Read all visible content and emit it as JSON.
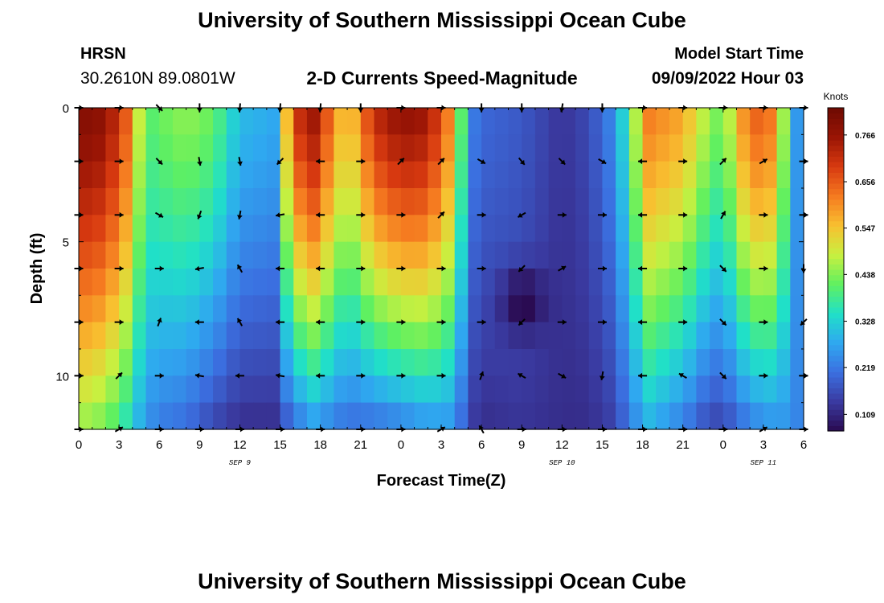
{
  "header": {
    "title": "University of Southern Mississippi Ocean Cube",
    "station": "HRSN",
    "coords": "30.2610N  89.0801W",
    "plot_title": "2-D Currents Speed-Magnitude",
    "model_start_label": "Model Start Time",
    "model_start_value": "09/09/2022 Hour 03"
  },
  "footer": {
    "title": "University of Southern Mississippi Ocean Cube"
  },
  "colors": {
    "colormap": [
      "#2a0a50",
      "#3a3aa0",
      "#3b6fe0",
      "#2fa8f0",
      "#20e0c8",
      "#60f060",
      "#c8f040",
      "#f8c030",
      "#f57a20",
      "#d83a10",
      "#9a1505",
      "#6e0a02"
    ]
  },
  "chart_data": {
    "type": "heatmap",
    "xlabel": "Forecast Time(Z)",
    "ylabel": "Depth (ft)",
    "x_ticks": [
      {
        "pos": 0,
        "label": "0"
      },
      {
        "pos": 3,
        "label": "3"
      },
      {
        "pos": 6,
        "label": "6"
      },
      {
        "pos": 9,
        "label": "9"
      },
      {
        "pos": 12,
        "label": "12"
      },
      {
        "pos": 15,
        "label": "15"
      },
      {
        "pos": 18,
        "label": "18"
      },
      {
        "pos": 21,
        "label": "21"
      },
      {
        "pos": 24,
        "label": "0"
      },
      {
        "pos": 27,
        "label": "3"
      },
      {
        "pos": 30,
        "label": "6"
      },
      {
        "pos": 33,
        "label": "9"
      },
      {
        "pos": 36,
        "label": "12"
      },
      {
        "pos": 39,
        "label": "15"
      },
      {
        "pos": 42,
        "label": "18"
      },
      {
        "pos": 45,
        "label": "21"
      },
      {
        "pos": 48,
        "label": "0"
      },
      {
        "pos": 51,
        "label": "3"
      },
      {
        "pos": 54,
        "label": "6"
      }
    ],
    "date_labels": [
      {
        "pos": 12,
        "label": "SEP 9"
      },
      {
        "pos": 36,
        "label": "SEP 10"
      },
      {
        "pos": 51,
        "label": "SEP 11"
      }
    ],
    "xlim": [
      0,
      54
    ],
    "ylim": [
      0,
      12
    ],
    "y_ticks": [
      0,
      5,
      10
    ],
    "colorbar": {
      "label": "Knots",
      "range": [
        0.07,
        0.83
      ],
      "ticks": [
        "0.109",
        "0.219",
        "0.328",
        "0.438",
        "0.547",
        "0.656",
        "0.766"
      ],
      "tick_values": [
        0.109,
        0.219,
        0.328,
        0.438,
        0.547,
        0.656,
        0.766
      ]
    },
    "depths": [
      0,
      1,
      2,
      3,
      4,
      5,
      6,
      7,
      8,
      9,
      10,
      11,
      12
    ],
    "speed_profile": {
      "hours": [
        0,
        2,
        3.5,
        5,
        6,
        8,
        10,
        12,
        14.5,
        16,
        17.5,
        20,
        22,
        24,
        26,
        28,
        29,
        30,
        33,
        36,
        38,
        40,
        41,
        42.5,
        45,
        47,
        48,
        50,
        52,
        53,
        54
      ],
      "surface": [
        0.8,
        0.78,
        0.66,
        0.4,
        0.42,
        0.45,
        0.42,
        0.3,
        0.28,
        0.7,
        0.76,
        0.52,
        0.72,
        0.78,
        0.76,
        0.58,
        0.24,
        0.2,
        0.18,
        0.13,
        0.16,
        0.25,
        0.4,
        0.62,
        0.58,
        0.45,
        0.42,
        0.66,
        0.62,
        0.3,
        0.22
      ],
      "bottom": [
        0.45,
        0.42,
        0.35,
        0.25,
        0.22,
        0.2,
        0.15,
        0.12,
        0.12,
        0.2,
        0.25,
        0.2,
        0.2,
        0.22,
        0.25,
        0.25,
        0.15,
        0.12,
        0.13,
        0.12,
        0.12,
        0.15,
        0.22,
        0.28,
        0.22,
        0.15,
        0.15,
        0.22,
        0.25,
        0.25,
        0.22
      ]
    },
    "arrow_depths": [
      0,
      2,
      4,
      6,
      8,
      10,
      12
    ],
    "arrow_hours": [
      0,
      3,
      6,
      9,
      12,
      15,
      18,
      21,
      24,
      27,
      30,
      33,
      36,
      39,
      42,
      45,
      48,
      51,
      54
    ],
    "arrow_directions_deg": [
      [
        0,
        0,
        -45,
        -90,
        -95,
        -95,
        -95,
        -90,
        0,
        0,
        -90,
        -90,
        -100,
        -90,
        0,
        0,
        0,
        0,
        0
      ],
      [
        0,
        0,
        -45,
        -80,
        -80,
        -135,
        180,
        0,
        45,
        45,
        -30,
        -50,
        -45,
        -30,
        180,
        0,
        45,
        30,
        0
      ],
      [
        0,
        0,
        -30,
        -110,
        -100,
        -170,
        180,
        0,
        0,
        45,
        0,
        -150,
        0,
        0,
        180,
        0,
        60,
        0,
        0
      ],
      [
        0,
        0,
        0,
        -170,
        120,
        180,
        180,
        0,
        0,
        0,
        0,
        -135,
        30,
        0,
        180,
        0,
        -45,
        0,
        -90
      ],
      [
        0,
        0,
        70,
        180,
        120,
        180,
        180,
        0,
        0,
        0,
        0,
        -135,
        0,
        0,
        180,
        0,
        -45,
        0,
        -135
      ],
      [
        0,
        45,
        0,
        170,
        180,
        170,
        180,
        0,
        0,
        0,
        70,
        150,
        -30,
        -100,
        180,
        150,
        -45,
        0,
        0
      ],
      [
        0,
        30,
        0,
        0,
        0,
        0,
        0,
        0,
        0,
        30,
        120,
        0,
        0,
        0,
        0,
        0,
        0,
        30,
        0
      ]
    ]
  }
}
